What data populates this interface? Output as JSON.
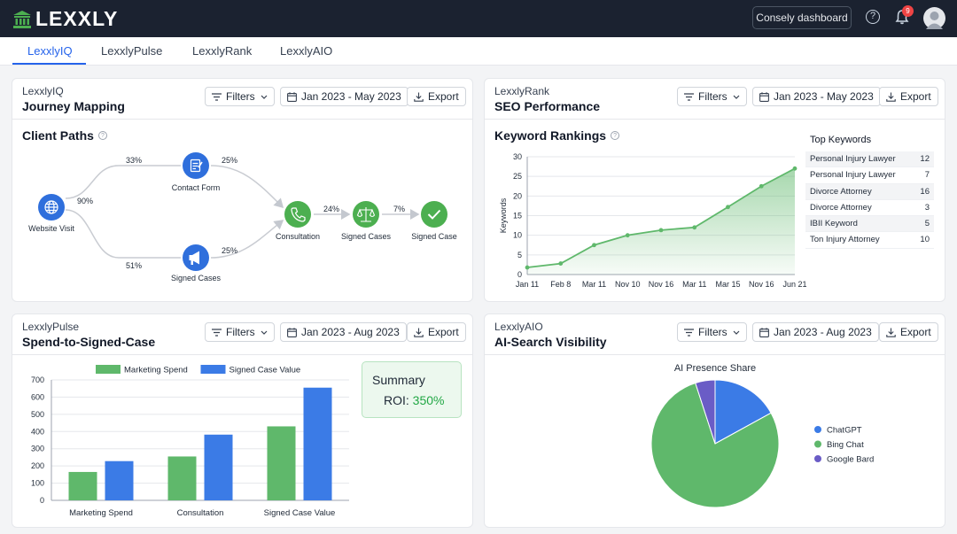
{
  "app": {
    "brand": "LEXXLY",
    "dashboard_button": "Consely dashboard",
    "notifications": "9"
  },
  "tabs": [
    {
      "label": "LexxlyIQ"
    },
    {
      "label": "LexxlyPulse"
    },
    {
      "label": "LexxlyRank"
    },
    {
      "label": "LexxlyAIO"
    }
  ],
  "journey": {
    "kicker": "LexxlyIQ",
    "title": "Journey Mapping",
    "filters": "Filters",
    "date_range": "Jan 2023 - May 2023",
    "export": "Export",
    "section": "Client Paths",
    "nodes": {
      "website": "Website Visit",
      "contact": "Contact Form",
      "signed_top": "Signed Cases",
      "consult": "Consultation",
      "signed_mid": "Signed Cases",
      "signed_case": "Signed Case"
    },
    "edges": {
      "to_top": "33%",
      "to_mid": "90%",
      "to_bottom": "51%",
      "contact_consult": "25%",
      "signed_consult": "25%",
      "consult_signed": "24%",
      "signed_case": "7%"
    }
  },
  "rank": {
    "kicker": "LexxlyRank",
    "title": "SEO Performance",
    "filters": "Filters",
    "date_range": "Jan 2023 - May 2023",
    "export": "Export",
    "section": "Keyword Rankings",
    "keywords_title": "Top Keywords",
    "keywords": [
      {
        "name": "Personal Injury Lawyer",
        "value": "12"
      },
      {
        "name": "Personal Injury Lawyer",
        "value": "7"
      },
      {
        "name": "Divorce Attorney",
        "value": "16"
      },
      {
        "name": "Divorce Attorney",
        "value": "3"
      },
      {
        "name": "IBII Keyword",
        "value": "5"
      },
      {
        "name": "Ton Injury Attorney",
        "value": "10"
      }
    ]
  },
  "pulse": {
    "kicker": "LexxlyPulse",
    "title": "Spend-to-Signed-Case",
    "filters": "Filters",
    "date_range": "Jan 2023 - Aug 2023",
    "export": "Export",
    "summary_title": "Summary",
    "roi_label": "ROI:",
    "roi_value": "350%"
  },
  "aio": {
    "kicker": "LexxlyAIO",
    "title": "AI-Search Visibility",
    "filters": "Filters",
    "date_range": "Jan 2023 - Aug 2023",
    "export": "Export"
  },
  "chart_data": [
    {
      "type": "line",
      "ylabel": "Keywords",
      "x": [
        "Jan 11",
        "Feb 8",
        "Mar 11",
        "Nov 10",
        "Nov 16",
        "Mar 11",
        "Mar 15",
        "Nov 16",
        "Jun 21"
      ],
      "series": [
        {
          "values": [
            1.8,
            2.8,
            7.5,
            10,
            11.3,
            12,
            17.2,
            22.5,
            27
          ]
        }
      ],
      "ylim": [
        0,
        30
      ],
      "yticks": [
        0,
        5,
        10,
        15,
        20,
        25,
        30
      ],
      "grid": true,
      "color": "#5fb86b"
    },
    {
      "type": "bar",
      "categories": [
        "Marketing Spend",
        "Consultation",
        "Signed Case Value"
      ],
      "series": [
        {
          "name": "Marketing Spend",
          "values": [
            165,
            255,
            430
          ],
          "color": "#5fb86b"
        },
        {
          "name": "Signed Case Value",
          "values": [
            228,
            382,
            655
          ],
          "color": "#3b7be6"
        }
      ],
      "ylim": [
        0,
        700
      ],
      "yticks": [
        0,
        100,
        200,
        300,
        400,
        500,
        600,
        700
      ],
      "legend": "top"
    },
    {
      "type": "pie",
      "title": "AI Presence Share",
      "slices": [
        {
          "name": "ChatGPT",
          "value": 17,
          "color": "#3b7be6"
        },
        {
          "name": "Bing Chat",
          "value": 78,
          "color": "#5fb86b"
        },
        {
          "name": "Google Bard",
          "value": 5,
          "color": "#6a5cc6"
        }
      ],
      "legend": "right"
    }
  ]
}
